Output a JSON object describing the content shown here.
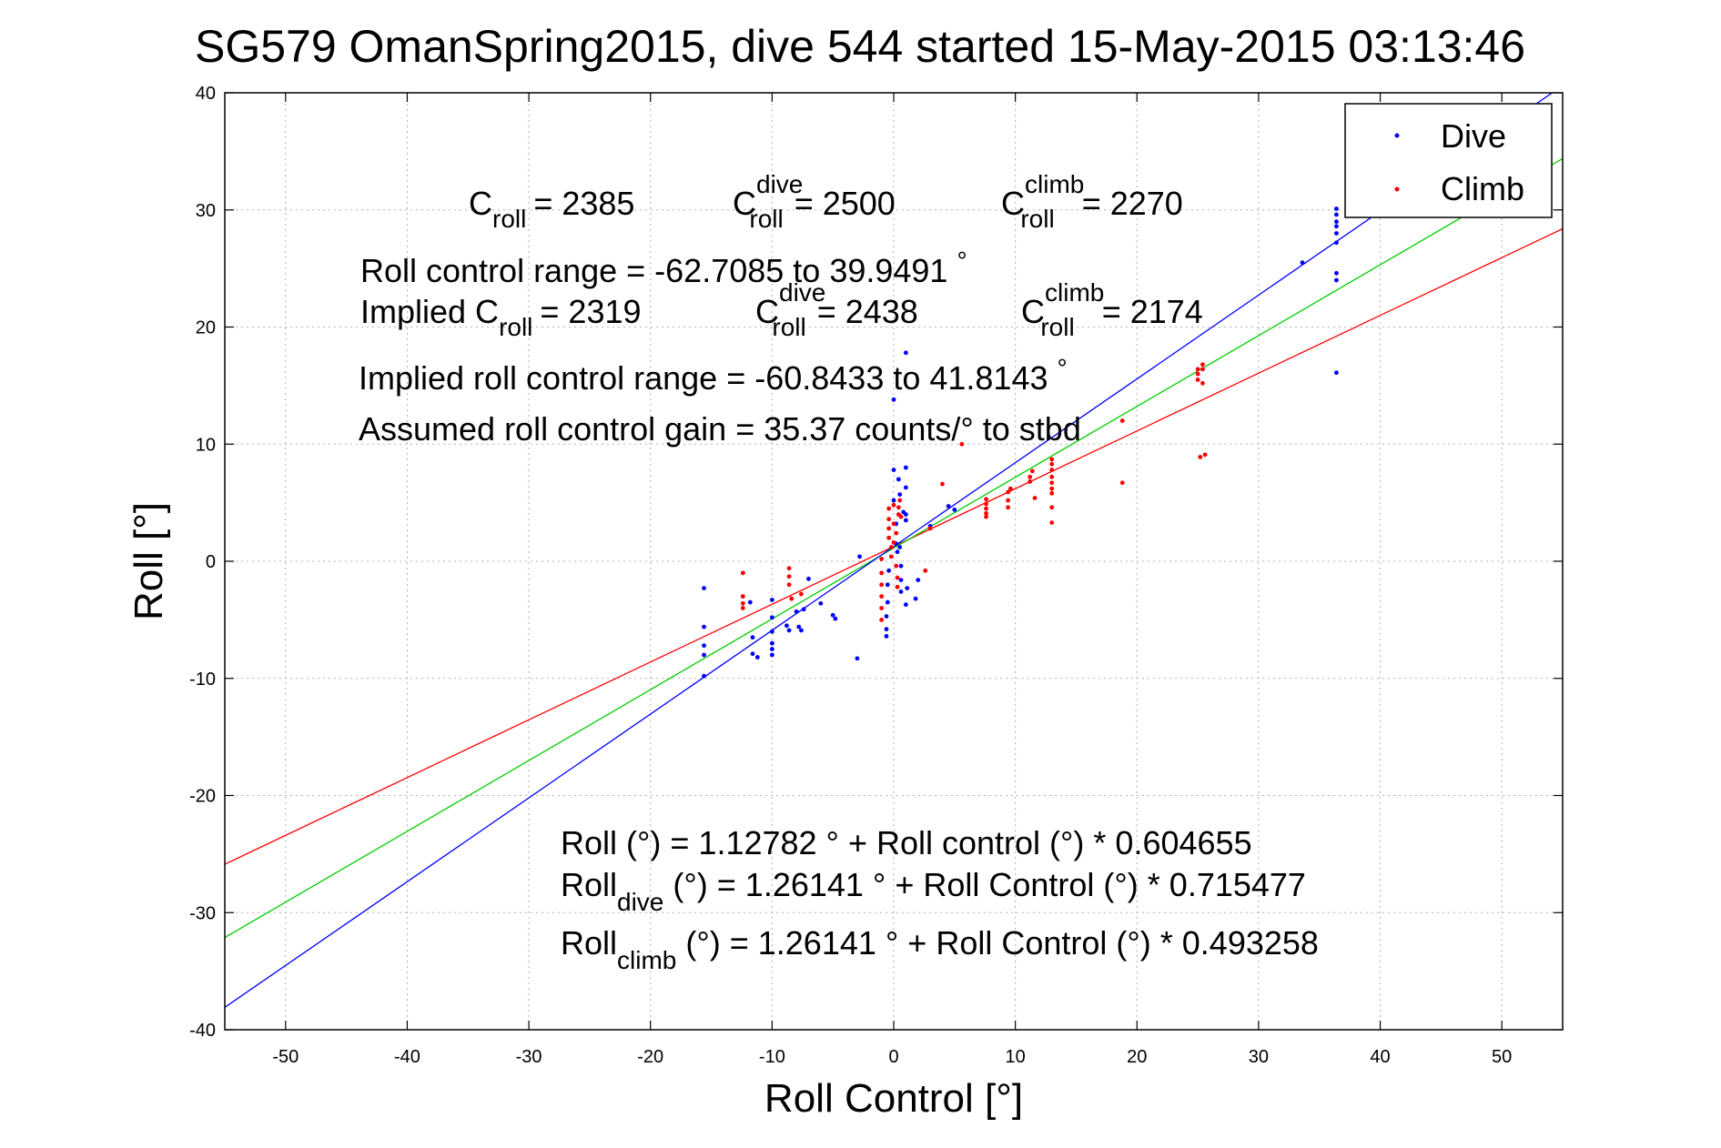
{
  "chart_data": {
    "type": "scatter",
    "title": "SG579 OmanSpring2015, dive 544 started 15-May-2015 03:13:46",
    "xlabel": "Roll Control [°]",
    "ylabel": "Roll [°]",
    "xlim": [
      -55,
      55
    ],
    "ylim": [
      -40,
      40
    ],
    "xticks": [
      -50,
      -40,
      -30,
      -20,
      -10,
      0,
      10,
      20,
      30,
      40,
      50
    ],
    "yticks": [
      -40,
      -30,
      -20,
      -10,
      0,
      10,
      20,
      30,
      40
    ],
    "grid": true,
    "legend": {
      "placement": "top-right",
      "entries": [
        {
          "label": "Dive",
          "color": "#0000ff"
        },
        {
          "label": "Climb",
          "color": "#ff0000"
        }
      ]
    },
    "series": [
      {
        "name": "Dive",
        "color": "#0000ff",
        "points": [
          [
            -15.6,
            -2.3
          ],
          [
            -15.6,
            -5.6
          ],
          [
            -15.6,
            -7.2
          ],
          [
            -15.6,
            -8.0
          ],
          [
            -15.6,
            -9.8
          ],
          [
            -11.8,
            -3.5
          ],
          [
            -11.6,
            -6.5
          ],
          [
            -11.6,
            -7.9
          ],
          [
            -11.2,
            -8.2
          ],
          [
            -10.0,
            -3.3
          ],
          [
            -10.0,
            -4.8
          ],
          [
            -10.0,
            -6.0
          ],
          [
            -10.0,
            -7.0
          ],
          [
            -10.0,
            -7.5
          ],
          [
            -10.0,
            -8.0
          ],
          [
            -8.8,
            -5.5
          ],
          [
            -8.6,
            -5.9
          ],
          [
            -8.0,
            -4.3
          ],
          [
            -7.8,
            -5.6
          ],
          [
            -7.6,
            -5.9
          ],
          [
            -7.4,
            -4.1
          ],
          [
            -7.0,
            -1.5
          ],
          [
            -6.0,
            -3.6
          ],
          [
            -5.0,
            -4.6
          ],
          [
            -4.8,
            -4.9
          ],
          [
            -3.0,
            -8.3
          ],
          [
            -2.8,
            0.4
          ],
          [
            -0.6,
            -6.4
          ],
          [
            -0.6,
            -5.8
          ],
          [
            -0.6,
            -4.7
          ],
          [
            -0.5,
            -3.5
          ],
          [
            -0.5,
            -2.0
          ],
          [
            -0.4,
            -0.8
          ],
          [
            0.0,
            13.8
          ],
          [
            0.0,
            7.8
          ],
          [
            0.0,
            5.2
          ],
          [
            0.2,
            3.2
          ],
          [
            0.2,
            1.5
          ],
          [
            0.3,
            0.8
          ],
          [
            0.4,
            7.0
          ],
          [
            0.5,
            5.7
          ],
          [
            0.5,
            1.2
          ],
          [
            0.6,
            -0.4
          ],
          [
            0.6,
            -1.6
          ],
          [
            0.6,
            -2.6
          ],
          [
            0.8,
            4.2
          ],
          [
            1.0,
            17.8
          ],
          [
            1.0,
            8.0
          ],
          [
            1.0,
            6.3
          ],
          [
            1.0,
            4.0
          ],
          [
            1.0,
            3.5
          ],
          [
            1.0,
            -3.7
          ],
          [
            1.1,
            -2.3
          ],
          [
            1.8,
            -3.2
          ],
          [
            2.0,
            -1.6
          ],
          [
            3.0,
            3.0
          ],
          [
            4.5,
            4.7
          ],
          [
            5.0,
            4.4
          ],
          [
            33.6,
            25.5
          ],
          [
            36.4,
            30.1
          ],
          [
            36.4,
            29.6
          ],
          [
            36.4,
            29.0
          ],
          [
            36.4,
            28.6
          ],
          [
            36.4,
            28.0
          ],
          [
            36.4,
            27.2
          ],
          [
            36.4,
            24.6
          ],
          [
            36.4,
            24.0
          ],
          [
            36.4,
            16.1
          ]
        ]
      },
      {
        "name": "Climb",
        "color": "#ff0000",
        "points": [
          [
            -12.4,
            -1.0
          ],
          [
            -12.4,
            -3.0
          ],
          [
            -12.4,
            -3.6
          ],
          [
            -12.4,
            -4.0
          ],
          [
            -8.6,
            -0.6
          ],
          [
            -8.6,
            -1.3
          ],
          [
            -8.6,
            -2.0
          ],
          [
            -8.4,
            -3.2
          ],
          [
            -7.6,
            -2.8
          ],
          [
            -1.0,
            0.2
          ],
          [
            -1.0,
            -1.0
          ],
          [
            -1.0,
            -2.0
          ],
          [
            -1.0,
            -3.0
          ],
          [
            -1.0,
            -4.0
          ],
          [
            -1.0,
            -5.0
          ],
          [
            -0.4,
            4.5
          ],
          [
            -0.4,
            3.6
          ],
          [
            -0.4,
            2.8
          ],
          [
            -0.4,
            2.0
          ],
          [
            -0.2,
            1.2
          ],
          [
            -0.2,
            0.4
          ],
          [
            0.0,
            4.8
          ],
          [
            0.0,
            3.2
          ],
          [
            0.0,
            1.6
          ],
          [
            0.2,
            2.4
          ],
          [
            0.2,
            -0.4
          ],
          [
            0.3,
            -1.4
          ],
          [
            0.3,
            -2.2
          ],
          [
            0.4,
            4.6
          ],
          [
            0.4,
            4.0
          ],
          [
            0.5,
            5.2
          ],
          [
            0.6,
            3.8
          ],
          [
            2.6,
            -0.8
          ],
          [
            3.0,
            2.8
          ],
          [
            4.0,
            6.6
          ],
          [
            5.6,
            10.0
          ],
          [
            7.6,
            3.8
          ],
          [
            7.6,
            4.1
          ],
          [
            7.6,
            4.5
          ],
          [
            7.6,
            4.9
          ],
          [
            7.6,
            5.3
          ],
          [
            9.4,
            4.6
          ],
          [
            9.4,
            5.2
          ],
          [
            9.4,
            5.9
          ],
          [
            9.6,
            6.2
          ],
          [
            11.2,
            6.8
          ],
          [
            11.2,
            7.2
          ],
          [
            11.4,
            7.7
          ],
          [
            11.6,
            5.4
          ],
          [
            13.0,
            3.3
          ],
          [
            13.0,
            4.6
          ],
          [
            13.0,
            5.8
          ],
          [
            13.0,
            6.2
          ],
          [
            13.0,
            6.7
          ],
          [
            13.0,
            7.2
          ],
          [
            13.0,
            7.8
          ],
          [
            13.0,
            8.3
          ],
          [
            13.0,
            8.7
          ],
          [
            18.8,
            12.0
          ],
          [
            18.8,
            6.7
          ],
          [
            25.0,
            15.5
          ],
          [
            25.0,
            16.0
          ],
          [
            25.0,
            16.4
          ],
          [
            25.4,
            15.2
          ],
          [
            25.4,
            16.4
          ],
          [
            25.4,
            16.8
          ],
          [
            25.2,
            8.9
          ],
          [
            25.6,
            9.1
          ]
        ]
      }
    ],
    "fit_lines": [
      {
        "color": "#ff0000",
        "intercept": 1.26141,
        "slope": 0.493258
      },
      {
        "color": "#00cc00",
        "intercept": 1.12782,
        "slope": 0.604655
      },
      {
        "color": "#0000ff",
        "intercept": 1.26141,
        "slope": 0.715477
      }
    ],
    "annotations": {
      "c_roll": {
        "base": "C",
        "sub": "roll",
        "value": "= 2385"
      },
      "c_roll_dive": {
        "base": "C",
        "sup": "dive",
        "sub": "roll",
        "value": "= 2500"
      },
      "c_roll_climb": {
        "base": "C",
        "sup": "climb",
        "sub": "roll",
        "value": "= 2270"
      },
      "roll_control_range": "Roll control range = -62.7085 to 39.9491",
      "roll_control_range_deg": "°",
      "implied_prefix": "Implied C",
      "implied_sub": "roll",
      "implied_value": "= 2319",
      "implied_dive": {
        "base": "C",
        "sup": "dive",
        "sub": "roll",
        "value": "= 2438"
      },
      "implied_climb": {
        "base": "C",
        "sup": "climb",
        "sub": "roll",
        "value": "= 2174"
      },
      "implied_range": "Implied roll control range = -60.8433 to 41.8143",
      "implied_range_deg": "°",
      "gain": "Assumed roll control gain = 35.37 counts/° to stbd",
      "eq_all": "Roll (°) = 1.12782 ° + Roll control (°) * 0.604655",
      "eq_dive_base": "Roll",
      "eq_dive_sub": "dive",
      "eq_dive_rest": "(°) = 1.26141 ° + Roll Control (°) * 0.715477",
      "eq_climb_base": "Roll",
      "eq_climb_sub": "climb",
      "eq_climb_rest": "(°) = 1.26141 ° + Roll Control (°) * 0.493258"
    }
  }
}
